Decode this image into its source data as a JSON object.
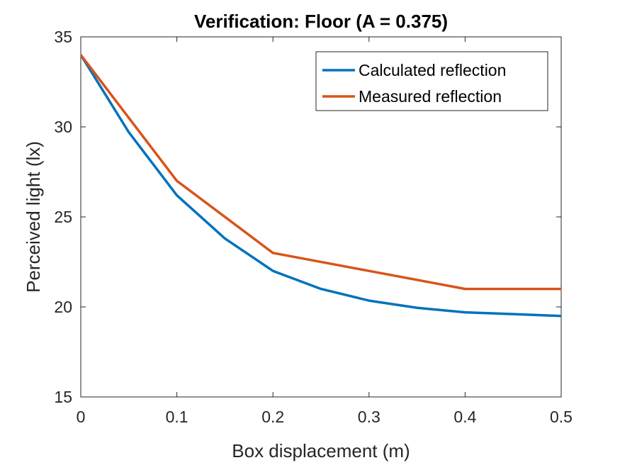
{
  "chart_data": {
    "type": "line",
    "title": "Verification: Floor (A = 0.375)",
    "xlabel": "Box displacement (m)",
    "ylabel": "Perceived light (lx)",
    "xlim": [
      0,
      0.5
    ],
    "ylim": [
      15,
      35
    ],
    "xticks": [
      "0",
      "0.1",
      "0.2",
      "0.3",
      "0.4",
      "0.5"
    ],
    "yticks": [
      "15",
      "20",
      "25",
      "30",
      "35"
    ],
    "grid": false,
    "legend_position": "top-right",
    "series": [
      {
        "name": "Calculated reflection",
        "color": "#0072BD",
        "x": [
          0,
          0.05,
          0.1,
          0.15,
          0.2,
          0.25,
          0.3,
          0.35,
          0.4,
          0.45,
          0.5
        ],
        "y": [
          34,
          29.7,
          26.2,
          23.8,
          22.0,
          21.0,
          20.35,
          19.95,
          19.7,
          19.6,
          19.5
        ]
      },
      {
        "name": "Measured reflection",
        "color": "#D95319",
        "x": [
          0,
          0.1,
          0.2,
          0.3,
          0.4,
          0.5
        ],
        "y": [
          34,
          27,
          23,
          22,
          21,
          21
        ]
      }
    ]
  }
}
